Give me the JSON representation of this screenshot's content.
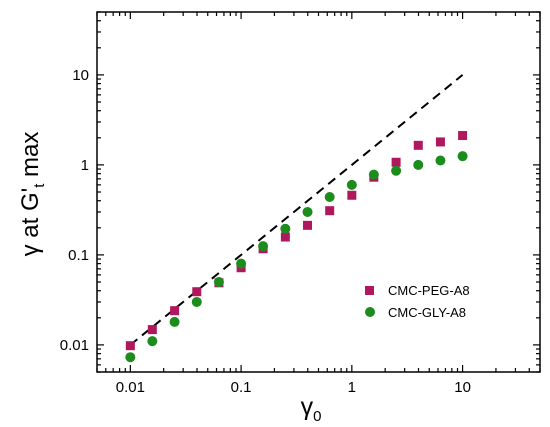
{
  "chart_data": {
    "type": "scatter",
    "x_scale": "log",
    "y_scale": "log",
    "xlim": [
      0.005,
      50
    ],
    "ylim": [
      0.005,
      50
    ],
    "xlabel": {
      "base": "γ",
      "sub": "0"
    },
    "ylabel": {
      "pre": "γ at G'",
      "sub": "t",
      "post": " max"
    },
    "x_ticks": [
      0.01,
      0.1,
      1,
      10
    ],
    "x_tick_labels": [
      "0.01",
      "0.1",
      "1",
      "10"
    ],
    "y_ticks": [
      0.01,
      0.1,
      1,
      10
    ],
    "y_tick_labels": [
      "0.01",
      "0.1",
      "1",
      "10"
    ],
    "grid": false,
    "legend_position": "bottom-right",
    "reference_line": {
      "style": "dashed",
      "color": "#000000",
      "x": [
        0.01,
        10
      ],
      "y": [
        0.01,
        10
      ]
    },
    "series": [
      {
        "name": "CMC-PEG-A8",
        "marker": "square",
        "color": "#b0185e",
        "x": [
          0.01,
          0.0158,
          0.0251,
          0.0398,
          0.0631,
          0.1,
          0.158,
          0.251,
          0.398,
          0.631,
          1,
          1.58,
          2.51,
          3.98,
          6.31,
          10
        ],
        "y": [
          0.0098,
          0.0148,
          0.024,
          0.039,
          0.049,
          0.072,
          0.117,
          0.158,
          0.213,
          0.31,
          0.46,
          0.73,
          1.07,
          1.65,
          1.8,
          2.12
        ]
      },
      {
        "name": "CMC-GLY-A8",
        "marker": "circle",
        "color": "#1c8c1c",
        "x": [
          0.01,
          0.0158,
          0.0251,
          0.0398,
          0.0631,
          0.1,
          0.158,
          0.251,
          0.398,
          0.631,
          1,
          1.58,
          2.51,
          3.98,
          6.31,
          10
        ],
        "y": [
          0.0073,
          0.011,
          0.018,
          0.03,
          0.05,
          0.08,
          0.125,
          0.195,
          0.3,
          0.44,
          0.6,
          0.78,
          0.86,
          1.0,
          1.12,
          1.25
        ]
      }
    ]
  }
}
